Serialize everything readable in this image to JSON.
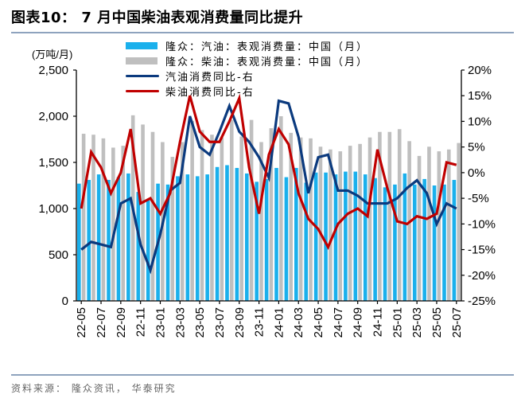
{
  "header": {
    "title": "图表10： 7 月中国柴油表观消费量同比提升"
  },
  "footer": {
    "source": "资料来源： 隆众资讯， 华泰研究"
  },
  "colors": {
    "gasoline_bar": "#1ab0ec",
    "diesel_bar": "#bfbfbf",
    "gasoline_yoy": "#0b3a7e",
    "diesel_yoy": "#c00000",
    "rule": "#8ea3be"
  },
  "chart_data": {
    "type": "bar",
    "title": "图表10： 7 月中国柴油表观消费量同比提升",
    "ylabel": "(万吨/月)",
    "y2label": "",
    "ylim": [
      0,
      2500
    ],
    "y2lim": [
      -25,
      20
    ],
    "yticks": [
      "0",
      "500",
      "1,000",
      "1,500",
      "2,000",
      "2,500"
    ],
    "y2ticks": [
      "-25%",
      "-20%",
      "-15%",
      "-10%",
      "-5%",
      "0%",
      "5%",
      "10%",
      "15%",
      "20%"
    ],
    "legend_position": "top-center",
    "grid": false,
    "categories": [
      "22-05",
      "22-06",
      "22-07",
      "22-08",
      "22-09",
      "22-10",
      "22-11",
      "22-12",
      "23-01",
      "23-02",
      "23-03",
      "23-04",
      "23-05",
      "23-06",
      "23-07",
      "23-08",
      "23-09",
      "23-10",
      "23-11",
      "23-12",
      "24-01",
      "24-02",
      "24-03",
      "24-04",
      "24-05",
      "24-06",
      "24-07",
      "24-08",
      "24-09",
      "24-10",
      "24-11",
      "24-12",
      "25-01",
      "25-02",
      "25-03",
      "25-04",
      "25-05",
      "25-06",
      "25-07"
    ],
    "tick_labels": [
      "22-05",
      "22-07",
      "22-09",
      "22-11",
      "23-01",
      "23-03",
      "23-05",
      "23-07",
      "23-09",
      "23-11",
      "24-01",
      "24-03",
      "24-05",
      "24-07",
      "24-09",
      "24-11",
      "25-01",
      "25-03",
      "25-05",
      "25-07"
    ],
    "series": [
      {
        "name": "隆众：汽油：表观消费量：中国（月）",
        "type": "bar",
        "axis": "left",
        "values": [
          1270,
          1310,
          1370,
          1310,
          1340,
          1380,
          1180,
          1090,
          1270,
          1260,
          1350,
          1370,
          1350,
          1370,
          1450,
          1470,
          1440,
          1380,
          1290,
          1320,
          1440,
          1340,
          1440,
          1280,
          1390,
          1390,
          1370,
          1400,
          1400,
          1370,
          1330,
          1230,
          1260,
          1380,
          1260,
          1320,
          1250,
          1260,
          1310
        ]
      },
      {
        "name": "隆众：柴油：表观消费量：中国（月）",
        "type": "bar",
        "axis": "left",
        "values": [
          1810,
          1800,
          1760,
          1660,
          1680,
          2010,
          1910,
          1830,
          1720,
          1560,
          1720,
          1950,
          1850,
          1800,
          1770,
          1960,
          1780,
          1960,
          1720,
          1870,
          2000,
          1820,
          1770,
          1760,
          1670,
          1640,
          1620,
          1680,
          1700,
          1770,
          1830,
          1830,
          1860,
          1730,
          1570,
          1670,
          1620,
          1640,
          1710
        ]
      },
      {
        "name": "汽油消费同比-右",
        "type": "line",
        "axis": "right",
        "unit": "%",
        "values": [
          -15,
          -13.5,
          -14,
          -14.5,
          -6,
          -5,
          -14,
          -19,
          -12,
          -3.5,
          -2,
          11,
          5,
          3.5,
          8,
          13,
          8,
          6,
          3,
          -1,
          14,
          13.5,
          7,
          -4,
          3,
          3.5,
          -3.5,
          -3.5,
          -4.5,
          -6,
          -6,
          -6,
          -5,
          -3,
          -1.5,
          -4,
          -10,
          -6,
          -7
        ]
      },
      {
        "name": "柴油消费同比-右",
        "type": "line",
        "axis": "right",
        "unit": "%",
        "values": [
          -7,
          4,
          1,
          -4,
          0,
          8.5,
          -6,
          -5,
          -8,
          -4,
          6,
          15,
          8,
          6,
          6,
          10,
          14.5,
          1,
          -8,
          3.5,
          8.5,
          5.5,
          -4,
          -9,
          -11,
          -14.5,
          -10,
          -8,
          -7,
          -8.5,
          4.5,
          -3,
          -9.5,
          -10,
          -8.5,
          -9,
          -8,
          2,
          1.5
        ]
      }
    ]
  }
}
